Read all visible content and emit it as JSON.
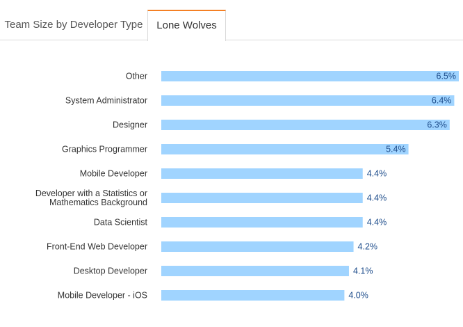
{
  "tabs": [
    {
      "label": "Team Size by Developer Type",
      "active": false
    },
    {
      "label": "Lone Wolves",
      "active": true
    }
  ],
  "colors": {
    "bar": "#a0d4ff",
    "value_label": "#1f4e8c",
    "category_label": "#333333",
    "active_tab_accent": "#f48024"
  },
  "chart_data": {
    "type": "bar",
    "orientation": "horizontal",
    "categories": [
      "Other",
      "System Administrator",
      "Designer",
      "Graphics Programmer",
      "Mobile Developer",
      "Developer with a Statistics or Mathematics Background",
      "Data Scientist",
      "Front-End Web Developer",
      "Desktop Developer",
      "Mobile Developer - iOS"
    ],
    "category_display_lines": [
      [
        "Other"
      ],
      [
        "System Administrator"
      ],
      [
        "Designer"
      ],
      [
        "Graphics Programmer"
      ],
      [
        "Mobile Developer"
      ],
      [
        "Developer with a Statistics or",
        "Mathematics Background"
      ],
      [
        "Data Scientist"
      ],
      [
        "Front-End Web Developer"
      ],
      [
        "Desktop Developer"
      ],
      [
        "Mobile Developer - iOS"
      ]
    ],
    "values": [
      6.5,
      6.4,
      6.3,
      5.4,
      4.4,
      4.4,
      4.4,
      4.2,
      4.1,
      4.0
    ],
    "value_labels": [
      "6.5%",
      "6.4%",
      "6.3%",
      "5.4%",
      "4.4%",
      "4.4%",
      "4.4%",
      "4.2%",
      "4.1%",
      "4.0%"
    ],
    "unit": "%",
    "title": "",
    "xlabel": "",
    "ylabel": "",
    "xlim": [
      0,
      6.5
    ],
    "grid": false,
    "legend": "none"
  }
}
